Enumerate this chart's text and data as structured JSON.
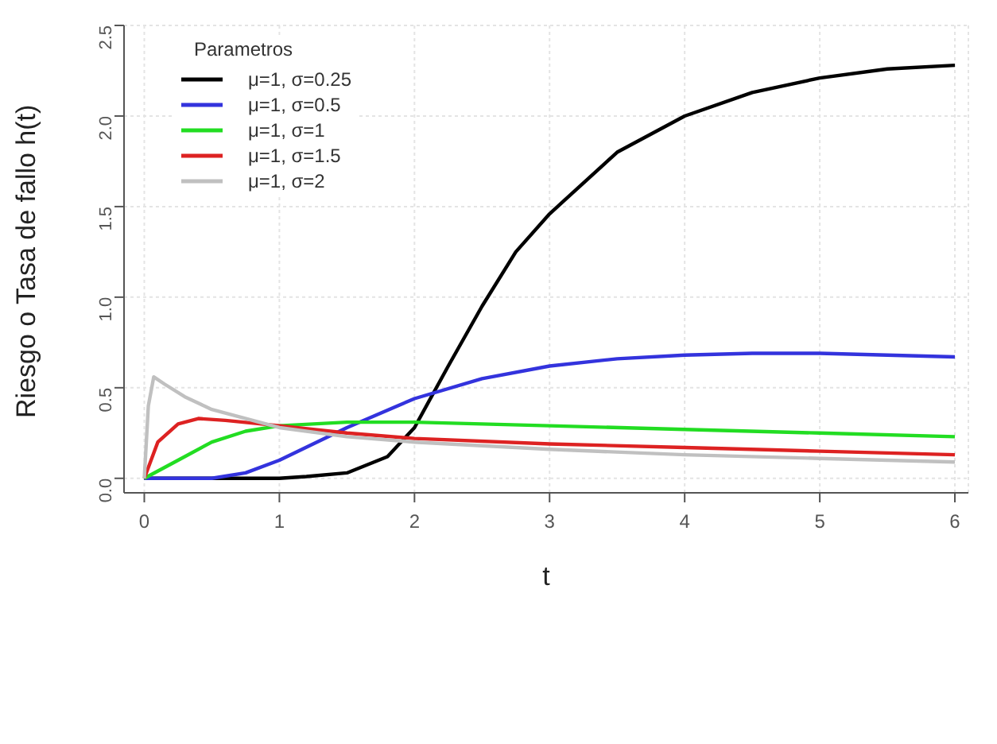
{
  "chart_data": {
    "type": "line",
    "xlabel": "t",
    "ylabel": "Riesgo o Tasa de fallo h(t)",
    "legend_title": "Parametros",
    "xlim": [
      -0.15,
      6.1
    ],
    "ylim": [
      -0.08,
      2.5
    ],
    "xticks": [
      0,
      1,
      2,
      3,
      4,
      5,
      6
    ],
    "yticks": [
      {
        "value": 0,
        "label": "0.0"
      },
      {
        "value": 0.5,
        "label": "0.5"
      },
      {
        "value": 1,
        "label": "1.0"
      },
      {
        "value": 1.5,
        "label": "1.5"
      },
      {
        "value": 2,
        "label": "2.0"
      },
      {
        "value": 2.5,
        "label": "2.5"
      }
    ],
    "grid": true,
    "legend": "top left",
    "line_style": "solid",
    "marker": "none",
    "series": [
      {
        "name": "μ=1, σ=0.25",
        "color": "#000000",
        "x": [
          0,
          0.5,
          1,
          1.2,
          1.5,
          1.8,
          2,
          2.25,
          2.5,
          2.75,
          3,
          3.5,
          4,
          4.5,
          5,
          5.5,
          6
        ],
        "values": [
          0,
          0,
          0,
          0.01,
          0.03,
          0.12,
          0.28,
          0.62,
          0.95,
          1.25,
          1.46,
          1.8,
          2.0,
          2.13,
          2.21,
          2.26,
          2.28
        ]
      },
      {
        "name": "μ=1, σ=0.5",
        "color": "#3333dd",
        "x": [
          0,
          0.5,
          0.75,
          1,
          1.5,
          2,
          2.5,
          3,
          3.5,
          4,
          4.5,
          5,
          5.5,
          6
        ],
        "values": [
          0,
          0,
          0.03,
          0.1,
          0.28,
          0.44,
          0.55,
          0.62,
          0.66,
          0.68,
          0.69,
          0.69,
          0.68,
          0.67
        ]
      },
      {
        "name": "μ=1, σ=1",
        "color": "#22dd22",
        "x": [
          0,
          0.25,
          0.5,
          0.75,
          1,
          1.5,
          2,
          3,
          4,
          5,
          6
        ],
        "values": [
          0,
          0.1,
          0.2,
          0.26,
          0.29,
          0.31,
          0.31,
          0.29,
          0.27,
          0.25,
          0.23
        ]
      },
      {
        "name": "μ=1, σ=1.5",
        "color": "#dd2222",
        "x": [
          0,
          0.1,
          0.25,
          0.4,
          0.6,
          1,
          1.5,
          2,
          3,
          4,
          5,
          6
        ],
        "values": [
          0,
          0.2,
          0.3,
          0.33,
          0.32,
          0.29,
          0.25,
          0.22,
          0.19,
          0.17,
          0.15,
          0.13
        ]
      },
      {
        "name": "μ=1, σ=2",
        "color": "#c0c0c0",
        "x": [
          0,
          0.03,
          0.07,
          0.15,
          0.3,
          0.5,
          1,
          1.5,
          2,
          3,
          4,
          5,
          6
        ],
        "values": [
          0,
          0.4,
          0.56,
          0.52,
          0.45,
          0.38,
          0.28,
          0.23,
          0.2,
          0.16,
          0.13,
          0.11,
          0.09
        ]
      }
    ]
  }
}
